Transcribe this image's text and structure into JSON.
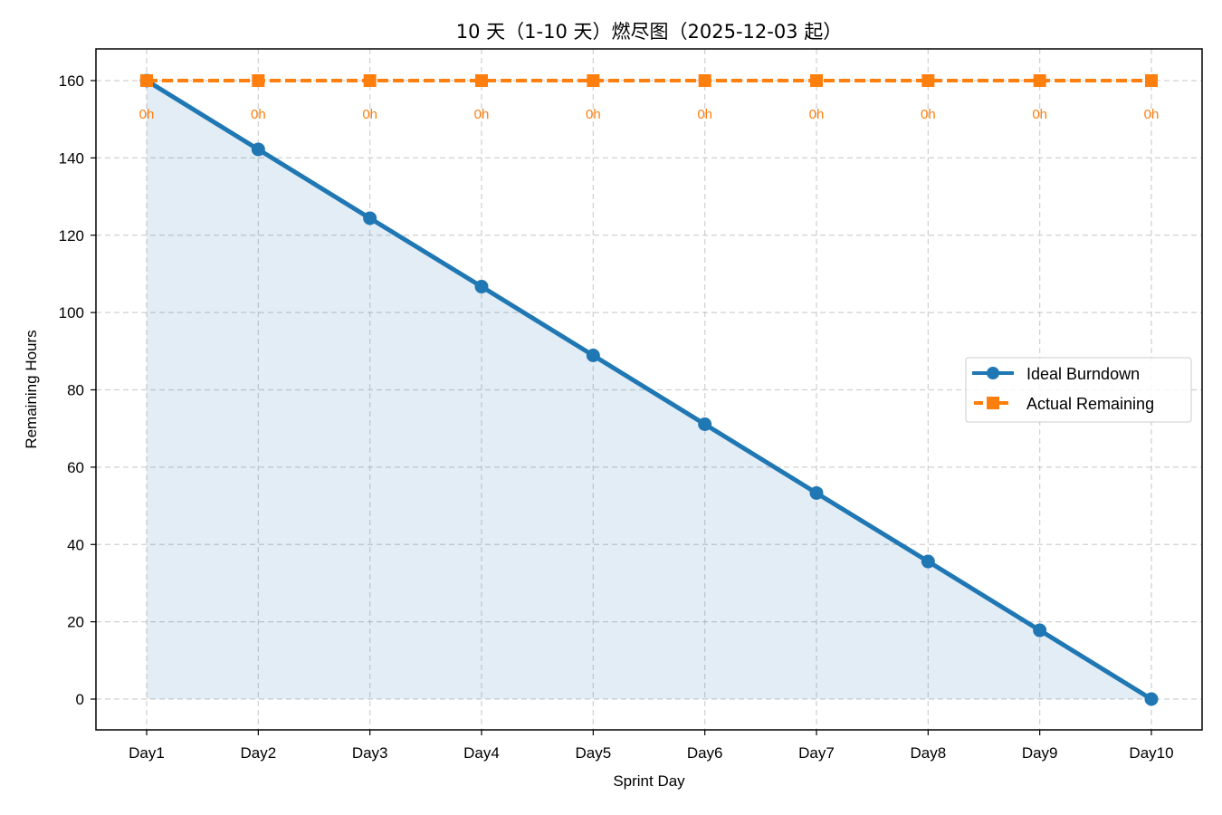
{
  "chart_data": {
    "type": "line",
    "title": "10 天（1-10 天）燃尽图（2025-12-03 起）",
    "xlabel": "Sprint Day",
    "ylabel": "Remaining Hours",
    "categories": [
      "Day1",
      "Day2",
      "Day3",
      "Day4",
      "Day5",
      "Day6",
      "Day7",
      "Day8",
      "Day9",
      "Day10"
    ],
    "series": [
      {
        "name": "Ideal Burndown",
        "color": "#1f77b4",
        "style": "solid",
        "marker": "circle",
        "fill_below": true,
        "values": [
          160,
          142.2,
          124.4,
          106.7,
          88.9,
          71.1,
          53.3,
          35.6,
          17.8,
          0
        ]
      },
      {
        "name": "Actual Remaining",
        "color": "#ff7f0e",
        "style": "dashed",
        "marker": "square",
        "values": [
          160,
          160,
          160,
          160,
          160,
          160,
          160,
          160,
          160,
          160
        ]
      }
    ],
    "annotations": [
      "0h",
      "0h",
      "0h",
      "0h",
      "0h",
      "0h",
      "0h",
      "0h",
      "0h",
      "0h"
    ],
    "yticks": [
      0,
      20,
      40,
      60,
      80,
      100,
      120,
      140,
      160
    ],
    "ylim": [
      -8,
      168
    ],
    "grid": true,
    "legend_position": "center right"
  },
  "labels": {
    "title": "10 天（1-10 天）燃尽图（2025-12-03 起）",
    "xlabel": "Sprint Day",
    "ylabel": "Remaining Hours",
    "legend_ideal": "Ideal Burndown",
    "legend_actual": "Actual Remaining"
  }
}
